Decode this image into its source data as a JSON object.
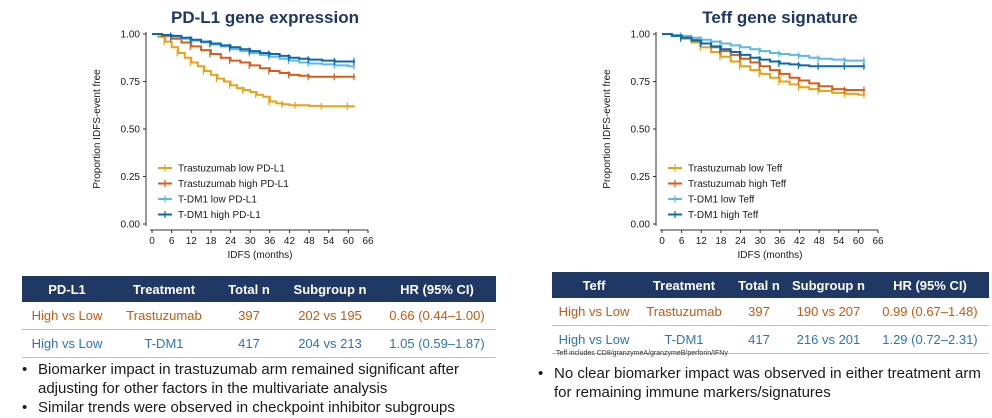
{
  "left": {
    "title": "PD-L1 gene expression",
    "chart_data": {
      "type": "line",
      "title": "PD-L1 gene expression",
      "xlabel": "IDFS (months)",
      "ylabel": "Proportion IDFS-event free",
      "xlim": [
        0,
        66
      ],
      "ylim": [
        0,
        1
      ],
      "xticks": [
        0,
        6,
        12,
        18,
        24,
        30,
        36,
        42,
        48,
        54,
        60,
        66
      ],
      "yticks": [
        "0.00",
        "0.25",
        "0.50",
        "0.75",
        "1.00"
      ],
      "legend_position": "bottom-left",
      "series": [
        {
          "name": "Trastuzumab low PD-L1",
          "color": "#e8a317",
          "x": [
            0,
            2,
            4,
            6,
            8,
            10,
            12,
            14,
            16,
            18,
            20,
            22,
            24,
            26,
            28,
            30,
            32,
            34,
            36,
            38,
            40,
            42,
            44,
            48,
            52,
            56,
            60,
            62
          ],
          "y": [
            1.0,
            0.985,
            0.96,
            0.93,
            0.9,
            0.875,
            0.85,
            0.83,
            0.805,
            0.785,
            0.765,
            0.75,
            0.73,
            0.715,
            0.705,
            0.695,
            0.68,
            0.67,
            0.645,
            0.635,
            0.63,
            0.625,
            0.625,
            0.622,
            0.62,
            0.62,
            0.62,
            0.62
          ]
        },
        {
          "name": "Trastuzumab high PD-L1",
          "color": "#d55e1a",
          "x": [
            0,
            3,
            6,
            9,
            12,
            15,
            18,
            21,
            24,
            27,
            30,
            33,
            36,
            39,
            42,
            45,
            48,
            52,
            56,
            60,
            62
          ],
          "y": [
            1.0,
            0.99,
            0.975,
            0.955,
            0.935,
            0.915,
            0.895,
            0.875,
            0.86,
            0.85,
            0.835,
            0.82,
            0.805,
            0.795,
            0.785,
            0.78,
            0.775,
            0.775,
            0.775,
            0.775,
            0.775
          ]
        },
        {
          "name": "T-DM1 low PD-L1",
          "color": "#5fb8e6",
          "x": [
            0,
            3,
            6,
            9,
            12,
            15,
            18,
            21,
            24,
            27,
            30,
            33,
            36,
            39,
            42,
            45,
            48,
            52,
            56,
            60,
            62
          ],
          "y": [
            1.0,
            0.995,
            0.985,
            0.975,
            0.965,
            0.955,
            0.945,
            0.935,
            0.92,
            0.91,
            0.9,
            0.89,
            0.88,
            0.87,
            0.86,
            0.85,
            0.845,
            0.84,
            0.835,
            0.83,
            0.83
          ]
        },
        {
          "name": "T-DM1 high PD-L1",
          "color": "#0b6aa8",
          "x": [
            0,
            3,
            6,
            9,
            12,
            15,
            18,
            21,
            24,
            27,
            30,
            33,
            36,
            39,
            42,
            45,
            48,
            52,
            56,
            60,
            62
          ],
          "y": [
            1.0,
            0.995,
            0.99,
            0.98,
            0.97,
            0.96,
            0.95,
            0.94,
            0.93,
            0.92,
            0.91,
            0.9,
            0.895,
            0.885,
            0.875,
            0.87,
            0.865,
            0.86,
            0.855,
            0.855,
            0.855
          ]
        }
      ]
    },
    "table": {
      "headers": [
        "PD-L1",
        "Treatment",
        "Total n",
        "Subgroup n",
        "HR (95% CI)"
      ],
      "rows": [
        [
          "High vs  Low",
          "Trastuzumab",
          "397",
          "202 vs 195",
          "0.66 (0.44–1.00)"
        ],
        [
          "High vs  Low",
          "T-DM1",
          "417",
          "204 vs 213",
          "1.05 (0.59–1.87)"
        ]
      ]
    },
    "bullets": [
      "Biomarker impact in trastuzumab arm remained significant after adjusting for other factors in the multivariate analysis",
      "Similar trends were observed in checkpoint inhibitor subgroups"
    ]
  },
  "right": {
    "title": "Teff gene signature",
    "chart_data": {
      "type": "line",
      "title": "Teff gene signature",
      "xlabel": "IDFS (months)",
      "ylabel": "Proportion IDFS-event free",
      "xlim": [
        0,
        66
      ],
      "ylim": [
        0,
        1
      ],
      "xticks": [
        0,
        6,
        12,
        18,
        24,
        30,
        36,
        42,
        48,
        54,
        60,
        66
      ],
      "yticks": [
        "0.00",
        "0.25",
        "0.50",
        "0.75",
        "1.00"
      ],
      "legend_position": "bottom-left",
      "series": [
        {
          "name": "Trastuzumab low Teff",
          "color": "#e8a317",
          "x": [
            0,
            3,
            6,
            9,
            12,
            15,
            18,
            21,
            24,
            27,
            30,
            33,
            36,
            39,
            42,
            45,
            48,
            52,
            56,
            60,
            62
          ],
          "y": [
            1.0,
            0.99,
            0.975,
            0.955,
            0.93,
            0.905,
            0.88,
            0.855,
            0.83,
            0.81,
            0.79,
            0.77,
            0.75,
            0.735,
            0.72,
            0.71,
            0.7,
            0.69,
            0.685,
            0.68,
            0.68
          ]
        },
        {
          "name": "Trastuzumab high Teff",
          "color": "#d55e1a",
          "x": [
            0,
            3,
            6,
            9,
            12,
            15,
            18,
            21,
            24,
            27,
            30,
            33,
            36,
            39,
            42,
            45,
            48,
            52,
            56,
            60,
            62
          ],
          "y": [
            1.0,
            0.995,
            0.985,
            0.97,
            0.95,
            0.93,
            0.91,
            0.89,
            0.87,
            0.85,
            0.83,
            0.81,
            0.79,
            0.77,
            0.755,
            0.74,
            0.725,
            0.71,
            0.705,
            0.705,
            0.705
          ]
        },
        {
          "name": "T-DM1 low Teff",
          "color": "#5fb8e6",
          "x": [
            0,
            3,
            6,
            9,
            12,
            15,
            18,
            21,
            24,
            27,
            30,
            33,
            36,
            39,
            42,
            45,
            48,
            52,
            56,
            60,
            62
          ],
          "y": [
            1.0,
            0.995,
            0.99,
            0.98,
            0.97,
            0.96,
            0.95,
            0.94,
            0.93,
            0.92,
            0.91,
            0.9,
            0.895,
            0.89,
            0.885,
            0.875,
            0.87,
            0.865,
            0.86,
            0.86,
            0.86
          ]
        },
        {
          "name": "T-DM1 high Teff",
          "color": "#0b6aa8",
          "x": [
            0,
            3,
            6,
            9,
            12,
            15,
            18,
            21,
            24,
            27,
            30,
            33,
            36,
            39,
            42,
            45,
            48,
            52,
            56,
            60,
            62
          ],
          "y": [
            1.0,
            0.99,
            0.98,
            0.965,
            0.95,
            0.935,
            0.92,
            0.905,
            0.89,
            0.875,
            0.865,
            0.855,
            0.845,
            0.84,
            0.835,
            0.83,
            0.83,
            0.83,
            0.83,
            0.83,
            0.83
          ]
        }
      ]
    },
    "table": {
      "headers": [
        "Teff",
        "Treatment",
        "Total n",
        "Subgroup n",
        "HR (95% CI)"
      ],
      "rows": [
        [
          "High vs  Low",
          "Trastuzumab",
          "397",
          "190 vs 207",
          "0.99 (0.67–1.48)"
        ],
        [
          "High vs  Low",
          "T-DM1",
          "417",
          "216 vs 201",
          "1.29 (0.72–2.31)"
        ]
      ]
    },
    "footnote": "Teff includes CD8/granzymeA/granzymeB/perforin/IFNγ",
    "bullets": [
      "No clear biomarker impact was observed in either treatment arm for remaining immune markers/signatures"
    ]
  }
}
